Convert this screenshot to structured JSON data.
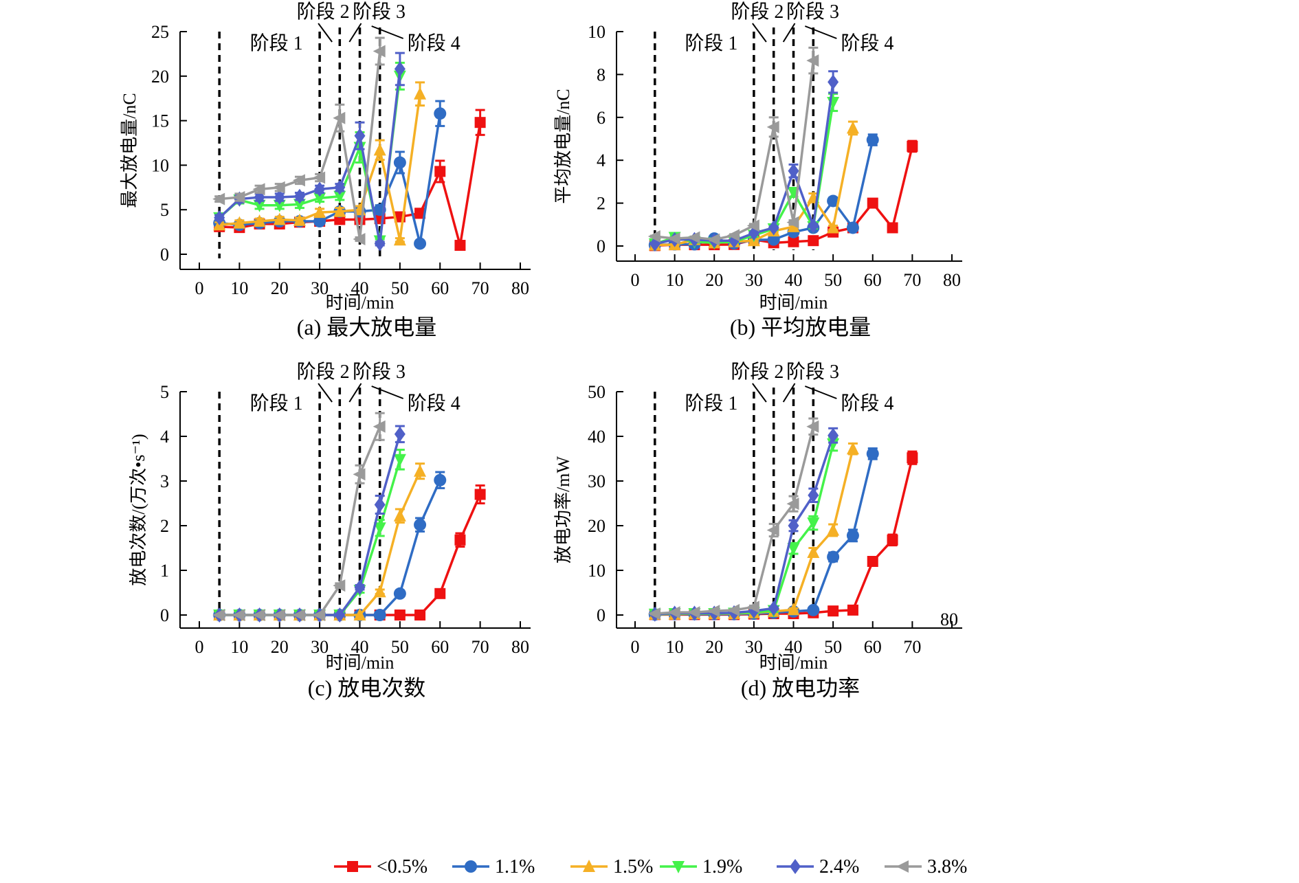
{
  "legend": [
    {
      "key": "s05",
      "label": "<0.5%",
      "color": "#ee1111",
      "marker": "square"
    },
    {
      "key": "s11",
      "label": "1.1%",
      "color": "#2f6cc4",
      "marker": "circle"
    },
    {
      "key": "s15",
      "label": "1.5%",
      "color": "#f5b025",
      "marker": "triangle-up"
    },
    {
      "key": "s19",
      "label": "1.9%",
      "color": "#44f24a",
      "marker": "triangle-down"
    },
    {
      "key": "s24",
      "label": "2.4%",
      "color": "#5060c8",
      "marker": "diamond"
    },
    {
      "key": "s38",
      "label": "3.8%",
      "color": "#9a9a9a",
      "marker": "triangle-left"
    }
  ],
  "chart_data": [
    {
      "id": "a",
      "type": "line",
      "caption": "(a) 最大放电量",
      "xlabel": "时间/min",
      "ylabel": "最大放电量/nC",
      "xlim": [
        0,
        80
      ],
      "ylim": [
        0,
        25
      ],
      "xticks": [
        0,
        10,
        20,
        30,
        40,
        50,
        60,
        70,
        80
      ],
      "yticks": [
        0,
        5,
        10,
        15,
        20,
        25
      ],
      "stage_lines_x": [
        5,
        30,
        35,
        40,
        45
      ],
      "stage_labels": [
        "阶段 1",
        "阶段 2",
        "阶段 3",
        "阶段 4"
      ],
      "error_bars": true,
      "series": [
        {
          "name": "<0.5%",
          "x": [
            5,
            10,
            15,
            20,
            25,
            30,
            35,
            40,
            45,
            50,
            55,
            60,
            65,
            70
          ],
          "y": [
            3.1,
            3.0,
            3.4,
            3.4,
            3.6,
            3.7,
            3.9,
            3.9,
            4.0,
            4.2,
            4.6,
            9.3,
            1.0,
            14.8
          ],
          "err": [
            0.3,
            0.3,
            0.3,
            0.3,
            0.3,
            0.3,
            0.3,
            0.4,
            0.5,
            0.5,
            0.5,
            1.2,
            0.2,
            1.4
          ]
        },
        {
          "name": "1.1%",
          "x": [
            5,
            10,
            15,
            20,
            25,
            30,
            35,
            40,
            45,
            50,
            55,
            60
          ],
          "y": [
            3.5,
            3.3,
            3.5,
            3.7,
            3.7,
            3.7,
            4.8,
            4.8,
            5.0,
            10.3,
            1.2,
            15.8
          ],
          "err": [
            0.3,
            0.3,
            0.3,
            0.3,
            0.3,
            0.3,
            0.4,
            0.4,
            0.5,
            1.2,
            0.2,
            1.4
          ]
        },
        {
          "name": "1.5%",
          "x": [
            5,
            10,
            15,
            20,
            25,
            30,
            35,
            40,
            45,
            50,
            55
          ],
          "y": [
            3.3,
            3.5,
            3.7,
            3.9,
            3.8,
            4.7,
            4.8,
            5.0,
            11.7,
            1.6,
            18.0
          ],
          "err": [
            0.3,
            0.3,
            0.3,
            0.3,
            0.3,
            0.4,
            0.4,
            0.4,
            1.1,
            0.2,
            1.3
          ]
        },
        {
          "name": "1.9%",
          "x": [
            5,
            10,
            15,
            20,
            25,
            30,
            35,
            40,
            45,
            50
          ],
          "y": [
            4.1,
            6.1,
            5.5,
            5.5,
            5.6,
            6.3,
            6.5,
            12.0,
            1.5,
            20.0
          ],
          "err": [
            0.3,
            0.4,
            0.4,
            0.4,
            0.4,
            0.4,
            0.4,
            1.7,
            0.2,
            1.5
          ]
        },
        {
          "name": "2.4%",
          "x": [
            5,
            10,
            15,
            20,
            25,
            30,
            35,
            40,
            45,
            50
          ],
          "y": [
            4.1,
            6.2,
            6.4,
            6.4,
            6.5,
            7.3,
            7.5,
            13.3,
            1.2,
            20.8
          ],
          "err": [
            0.3,
            0.4,
            0.4,
            0.4,
            0.4,
            0.4,
            0.4,
            1.5,
            0.2,
            1.8
          ]
        },
        {
          "name": "3.8%",
          "x": [
            5,
            10,
            15,
            20,
            25,
            30,
            35,
            40,
            45
          ],
          "y": [
            6.2,
            6.4,
            7.3,
            7.5,
            8.3,
            8.6,
            15.3,
            1.7,
            22.8
          ],
          "err": [
            0.3,
            0.4,
            0.4,
            0.4,
            0.4,
            0.4,
            1.5,
            0.2,
            1.5
          ]
        }
      ]
    },
    {
      "id": "b",
      "type": "line",
      "caption": "(b) 平均放电量",
      "xlabel": "时间/min",
      "ylabel": "平均放电量/nC",
      "xlim": [
        0,
        80
      ],
      "ylim": [
        0,
        10
      ],
      "xticks": [
        0,
        10,
        20,
        30,
        40,
        50,
        60,
        70,
        80
      ],
      "yticks": [
        0,
        2,
        4,
        6,
        8,
        10
      ],
      "stage_lines_x": [
        5,
        30,
        35,
        40,
        45
      ],
      "stage_labels": [
        "阶段 1",
        "阶段 2",
        "阶段 3",
        "阶段 4"
      ],
      "error_bars": true,
      "series": [
        {
          "name": "<0.5%",
          "x": [
            5,
            10,
            15,
            20,
            25,
            30,
            35,
            40,
            45,
            50,
            55,
            60,
            65,
            70
          ],
          "y": [
            0.02,
            0.06,
            0.06,
            0.06,
            0.07,
            0.3,
            0.15,
            0.2,
            0.25,
            0.65,
            0.85,
            2.0,
            0.85,
            4.65
          ],
          "err": [
            0.02,
            0.02,
            0.02,
            0.02,
            0.02,
            0.05,
            0.05,
            0.05,
            0.05,
            0.08,
            0.08,
            0.15,
            0.08,
            0.25
          ]
        },
        {
          "name": "1.1%",
          "x": [
            5,
            10,
            15,
            20,
            25,
            30,
            35,
            40,
            45,
            50,
            55,
            60
          ],
          "y": [
            0.05,
            0.08,
            0.08,
            0.35,
            0.12,
            0.28,
            0.3,
            0.65,
            0.85,
            2.1,
            0.85,
            4.95
          ],
          "err": [
            0.02,
            0.02,
            0.02,
            0.05,
            0.03,
            0.05,
            0.05,
            0.06,
            0.08,
            0.15,
            0.08,
            0.25
          ]
        },
        {
          "name": "1.5%",
          "x": [
            5,
            10,
            15,
            20,
            25,
            30,
            35,
            40,
            45,
            50,
            55
          ],
          "y": [
            0.05,
            0.06,
            0.3,
            0.15,
            0.2,
            0.25,
            0.7,
            0.9,
            2.25,
            0.85,
            5.5
          ],
          "err": [
            0.02,
            0.02,
            0.05,
            0.03,
            0.04,
            0.05,
            0.06,
            0.08,
            0.2,
            0.1,
            0.3
          ]
        },
        {
          "name": "1.9%",
          "x": [
            5,
            10,
            15,
            20,
            25,
            30,
            35,
            40,
            45,
            50
          ],
          "y": [
            0.1,
            0.4,
            0.2,
            0.15,
            0.2,
            0.5,
            0.8,
            2.5,
            0.9,
            6.7
          ],
          "err": [
            0.02,
            0.05,
            0.04,
            0.04,
            0.04,
            0.06,
            0.06,
            0.2,
            0.08,
            0.4
          ]
        },
        {
          "name": "2.4%",
          "x": [
            5,
            10,
            15,
            20,
            25,
            30,
            35,
            40,
            45,
            50
          ],
          "y": [
            0.1,
            0.3,
            0.3,
            0.25,
            0.25,
            0.6,
            0.85,
            3.5,
            0.95,
            7.65
          ],
          "err": [
            0.02,
            0.04,
            0.04,
            0.04,
            0.04,
            0.06,
            0.06,
            0.3,
            0.08,
            0.5
          ]
        },
        {
          "name": "3.8%",
          "x": [
            5,
            10,
            15,
            20,
            25,
            30,
            35,
            40,
            45
          ],
          "y": [
            0.45,
            0.35,
            0.4,
            0.3,
            0.5,
            0.95,
            5.55,
            1.1,
            8.65
          ],
          "err": [
            0.03,
            0.04,
            0.04,
            0.04,
            0.05,
            0.08,
            0.45,
            0.1,
            0.6
          ]
        }
      ]
    },
    {
      "id": "c",
      "type": "line",
      "caption": "(c) 放电次数",
      "xlabel": "时间/min",
      "ylabel": "放电次数/(万次•s⁻¹)",
      "xlim": [
        0,
        80
      ],
      "ylim": [
        0,
        5
      ],
      "xticks": [
        0,
        10,
        20,
        30,
        40,
        50,
        60,
        70,
        80
      ],
      "yticks": [
        0,
        1,
        2,
        3,
        4,
        5
      ],
      "stage_lines_x": [
        5,
        30,
        35,
        40,
        45
      ],
      "stage_labels": [
        "阶段 1",
        "阶段 2",
        "阶段 3",
        "阶段 4"
      ],
      "error_bars": true,
      "series": [
        {
          "name": "<0.5%",
          "x": [
            5,
            10,
            15,
            20,
            25,
            30,
            35,
            40,
            45,
            50,
            55,
            60,
            65,
            70
          ],
          "y": [
            0,
            0,
            0,
            0,
            0,
            0,
            0,
            0,
            0,
            0,
            0,
            0.48,
            1.68,
            2.7
          ],
          "err": [
            0,
            0,
            0,
            0,
            0,
            0,
            0,
            0,
            0,
            0,
            0,
            0.05,
            0.15,
            0.2
          ]
        },
        {
          "name": "1.1%",
          "x": [
            5,
            10,
            15,
            20,
            25,
            30,
            35,
            40,
            45,
            50,
            55,
            60
          ],
          "y": [
            0,
            0,
            0,
            0,
            0,
            0,
            0,
            0,
            0,
            0.48,
            2.02,
            3.02
          ],
          "err": [
            0,
            0,
            0,
            0,
            0,
            0,
            0,
            0,
            0,
            0.05,
            0.15,
            0.18
          ]
        },
        {
          "name": "1.5%",
          "x": [
            5,
            10,
            15,
            20,
            25,
            30,
            35,
            40,
            45,
            50,
            55
          ],
          "y": [
            0,
            0,
            0,
            0,
            0,
            0,
            0,
            0,
            0.52,
            2.22,
            3.22
          ],
          "err": [
            0,
            0,
            0,
            0,
            0,
            0,
            0,
            0,
            0.05,
            0.15,
            0.17
          ]
        },
        {
          "name": "1.9%",
          "x": [
            5,
            10,
            15,
            20,
            25,
            30,
            35,
            40,
            45,
            50
          ],
          "y": [
            0,
            0,
            0,
            0,
            0,
            0,
            0,
            0.55,
            1.95,
            3.48
          ],
          "err": [
            0,
            0,
            0,
            0,
            0,
            0,
            0,
            0.05,
            0.18,
            0.22
          ]
        },
        {
          "name": "2.4%",
          "x": [
            5,
            10,
            15,
            20,
            25,
            30,
            35,
            40,
            45,
            50
          ],
          "y": [
            0,
            0,
            0,
            0,
            0,
            0,
            0,
            0.62,
            2.47,
            4.05
          ],
          "err": [
            0,
            0,
            0,
            0,
            0,
            0,
            0,
            0.05,
            0.2,
            0.18
          ]
        },
        {
          "name": "3.8%",
          "x": [
            5,
            10,
            15,
            20,
            25,
            30,
            35,
            40,
            45
          ],
          "y": [
            0,
            0,
            0,
            0,
            0,
            0,
            0.66,
            3.15,
            4.22
          ],
          "err": [
            0,
            0,
            0,
            0,
            0,
            0,
            0.05,
            0.2,
            0.3
          ]
        }
      ]
    },
    {
      "id": "d",
      "type": "line",
      "caption": "(d) 放电功率",
      "xlabel": "时间/min",
      "ylabel": "放电功率/mW",
      "xlim": [
        0,
        80
      ],
      "ylim": [
        0,
        50
      ],
      "xticks": [
        0,
        10,
        20,
        30,
        40,
        50,
        60,
        70
      ],
      "xtick_extra_label": "80",
      "yticks": [
        0,
        10,
        20,
        30,
        40,
        50
      ],
      "stage_lines_x": [
        5,
        30,
        35,
        40,
        45
      ],
      "stage_labels": [
        "阶段 1",
        "阶段 2",
        "阶段 3",
        "阶段 4"
      ],
      "error_bars": true,
      "series": [
        {
          "name": "<0.5%",
          "x": [
            5,
            10,
            15,
            20,
            25,
            30,
            35,
            40,
            45,
            50,
            55,
            60,
            65,
            70
          ],
          "y": [
            0.1,
            0.1,
            0.1,
            0.1,
            0.1,
            0.2,
            0.3,
            0.3,
            0.5,
            0.9,
            1.1,
            12.0,
            16.8,
            35.2
          ],
          "err": [
            0.1,
            0.1,
            0.1,
            0.1,
            0.1,
            0.1,
            0.2,
            0.2,
            0.2,
            0.3,
            0.3,
            1.0,
            1.2,
            1.4
          ]
        },
        {
          "name": "1.1%",
          "x": [
            5,
            10,
            15,
            20,
            25,
            30,
            35,
            40,
            45,
            50,
            55,
            60
          ],
          "y": [
            0.1,
            0.2,
            0.2,
            0.2,
            0.2,
            0.3,
            0.5,
            0.8,
            1.1,
            13.0,
            17.8,
            36.1
          ],
          "err": [
            0.1,
            0.1,
            0.1,
            0.1,
            0.1,
            0.1,
            0.2,
            0.2,
            0.3,
            1.0,
            1.3,
            1.2
          ]
        },
        {
          "name": "1.5%",
          "x": [
            5,
            10,
            15,
            20,
            25,
            30,
            35,
            40,
            45,
            50,
            55
          ],
          "y": [
            0.2,
            0.2,
            0.3,
            0.3,
            0.3,
            0.5,
            0.8,
            1.2,
            14.0,
            19.0,
            37.2
          ],
          "err": [
            0.1,
            0.1,
            0.1,
            0.1,
            0.1,
            0.2,
            0.2,
            0.3,
            1.0,
            1.3,
            1.2
          ]
        },
        {
          "name": "1.9%",
          "x": [
            5,
            10,
            15,
            20,
            25,
            30,
            35,
            40,
            45,
            50
          ],
          "y": [
            0.2,
            0.3,
            0.3,
            0.3,
            0.4,
            0.6,
            1.0,
            14.9,
            20.6,
            38.3
          ],
          "err": [
            0.1,
            0.1,
            0.1,
            0.1,
            0.1,
            0.2,
            0.3,
            1.2,
            1.5,
            1.5
          ]
        },
        {
          "name": "2.4%",
          "x": [
            5,
            10,
            15,
            20,
            25,
            30,
            35,
            40,
            45,
            50
          ],
          "y": [
            0.2,
            0.4,
            0.4,
            0.4,
            0.5,
            0.9,
            1.5,
            20.0,
            26.8,
            40.2
          ],
          "err": [
            0.1,
            0.1,
            0.1,
            0.1,
            0.1,
            0.2,
            0.3,
            1.2,
            1.5,
            1.6
          ]
        },
        {
          "name": "3.8%",
          "x": [
            5,
            10,
            15,
            20,
            25,
            30,
            35,
            40,
            45
          ],
          "y": [
            0.3,
            0.6,
            0.6,
            0.9,
            1.1,
            1.8,
            19.0,
            24.9,
            42.2
          ],
          "err": [
            0.1,
            0.1,
            0.1,
            0.2,
            0.2,
            0.3,
            1.4,
            1.7,
            1.8
          ]
        }
      ]
    }
  ]
}
